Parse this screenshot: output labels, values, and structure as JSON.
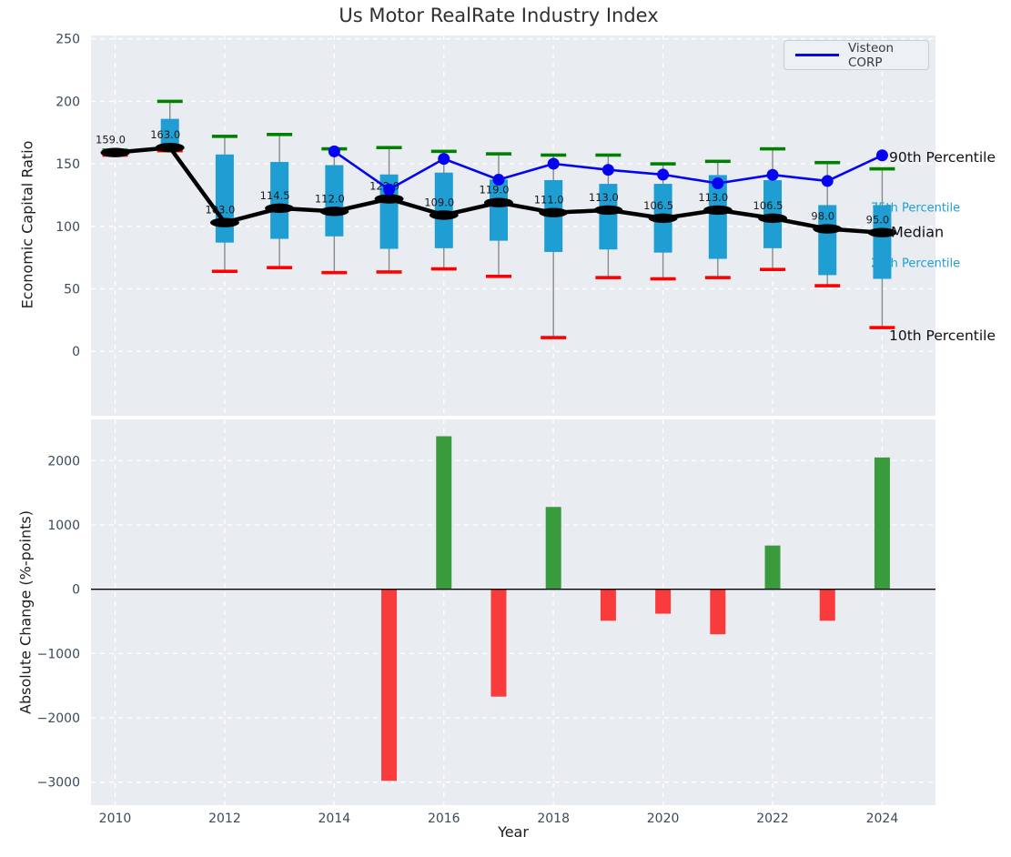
{
  "chart_data": [
    {
      "type": "candlestick",
      "title": "Us Motor RealRate Industry Index",
      "ylabel": "Economic Capital Ratio",
      "ylim": [
        -51,
        253
      ],
      "yticks": [
        0,
        50,
        100,
        150,
        200,
        250
      ],
      "ytick_labels": [
        "0",
        "50",
        "100",
        "150",
        "200",
        "250"
      ],
      "grid": true,
      "years": [
        2010,
        2011,
        2012,
        2013,
        2014,
        2015,
        2016,
        2017,
        2018,
        2019,
        2020,
        2021,
        2022,
        2023,
        2024
      ],
      "series": {
        "p90": [
          161,
          200,
          172,
          173.5,
          162,
          163,
          160,
          158,
          157,
          157,
          150,
          152,
          162,
          151,
          146
        ],
        "p75": [
          160.5,
          186,
          157.5,
          151.5,
          149,
          141.5,
          143,
          137.5,
          137,
          134,
          134,
          141,
          137,
          117,
          117
        ],
        "median": [
          159,
          163,
          103,
          114.5,
          112,
          122,
          109,
          119,
          111,
          113,
          106.5,
          113,
          106.5,
          98,
          95
        ],
        "p25": [
          157.5,
          161.5,
          87,
          90,
          92,
          82,
          82.5,
          88.5,
          79.5,
          81.5,
          79,
          74,
          82.5,
          61,
          58
        ],
        "p10": [
          157,
          160.5,
          64,
          67,
          63,
          63.5,
          66,
          60,
          11,
          59,
          58,
          59,
          65.5,
          52.5,
          19
        ]
      },
      "median_labels": [
        "159.0",
        "163.0",
        "103.0",
        "114.5",
        "112.0",
        "122.0",
        "109.0",
        "119.0",
        "111.0",
        "113.0",
        "106.5",
        "113.0",
        "106.5",
        "98.0",
        "95.0"
      ],
      "overlay_line": {
        "name": "Visteon CORP",
        "color": "#0404f0",
        "years": [
          2014,
          2015,
          2016,
          2017,
          2018,
          2019,
          2020,
          2021,
          2022,
          2023,
          2024
        ],
        "values": [
          160,
          129.5,
          154,
          137.3,
          150.1,
          145.2,
          141.4,
          134.4,
          141.2,
          136.3,
          156.8
        ]
      },
      "legend": {
        "label": "Visteon CORP",
        "position": "upper right"
      },
      "colors": {
        "box": "#1f9ed3",
        "p90_cap": "#008000",
        "p10_cap": "#ff0000",
        "median_line": "#000000",
        "whisker": "#8a8a8a",
        "axes_background": "#e9edf1",
        "gridline": "#ffffff",
        "tick_text": "#3b4a5c"
      },
      "annotations": [
        {
          "text": "90th Percentile",
          "color": "#111111",
          "size": 15.5
        },
        {
          "text": "75th Percentile",
          "color": "#1f9ed3",
          "size": 13
        },
        {
          "text": "Median",
          "color": "#111111",
          "size": 16
        },
        {
          "text": "25th Percentile",
          "color": "#1f9ed3",
          "size": 13
        },
        {
          "text": "10th Percentile",
          "color": "#111111",
          "size": 15.5
        }
      ]
    },
    {
      "type": "bar",
      "ylabel": "Absolute Change (%-points)",
      "xlabel": "Year",
      "ylim": [
        -3360,
        2630
      ],
      "yticks": [
        -3000,
        -2000,
        -1000,
        0,
        1000,
        2000
      ],
      "ytick_labels": [
        "−3000",
        "−2000",
        "−1000",
        "0",
        "1000",
        "2000"
      ],
      "xticks": [
        2010,
        2012,
        2014,
        2016,
        2018,
        2020,
        2022,
        2024
      ],
      "xtick_labels": [
        "2010",
        "2012",
        "2014",
        "2016",
        "2018",
        "2020",
        "2022",
        "2024"
      ],
      "grid": true,
      "years": [
        2015,
        2016,
        2017,
        2018,
        2019,
        2020,
        2021,
        2022,
        2023,
        2024
      ],
      "values": [
        -2980,
        2380,
        -1670,
        1280,
        -490,
        -380,
        -700,
        680,
        -490,
        2050
      ],
      "colors": {
        "positive": "#3a9b3c",
        "negative": "#f93b3c",
        "zero_line": "#000000",
        "axes_background": "#e9edf1",
        "gridline": "#ffffff",
        "tick_text": "#3b4a5c"
      }
    }
  ]
}
